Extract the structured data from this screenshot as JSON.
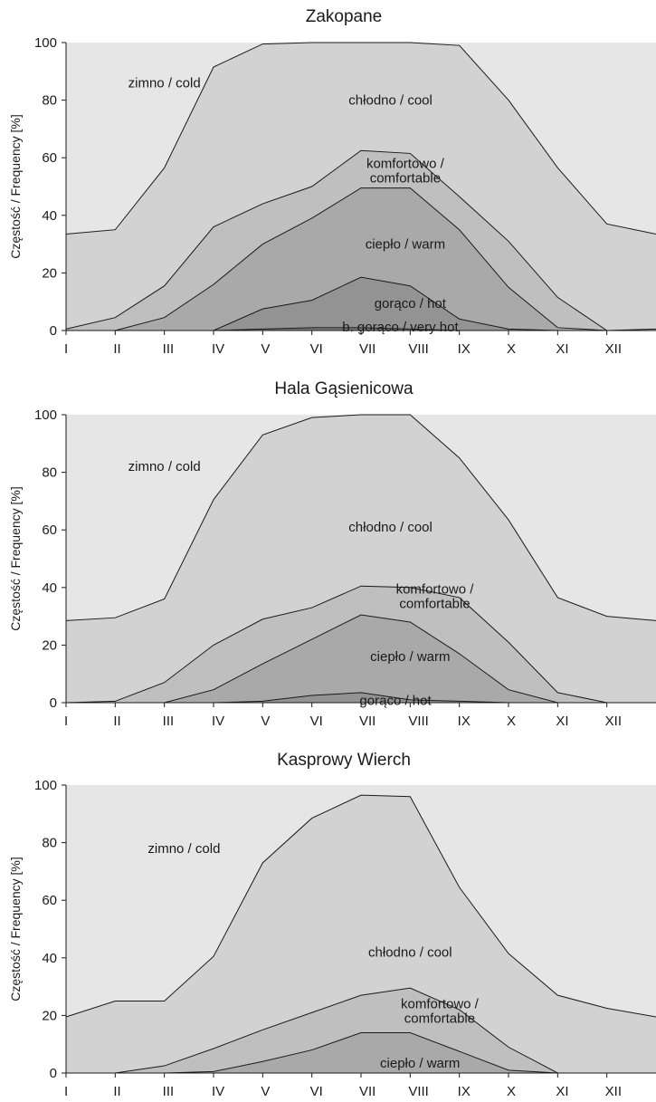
{
  "chart_data": [
    {
      "type": "area",
      "title": "Zakopane",
      "ylabel": "Częstość / Frequency [%]",
      "ylim": [
        0,
        100
      ],
      "yticks": [
        "0",
        "20",
        "40",
        "60",
        "80",
        "100"
      ],
      "categories": [
        "I",
        "II",
        "III",
        "IV",
        "V",
        "VI",
        "VII",
        "VIII",
        "IX",
        "X",
        "XI",
        "XII"
      ],
      "x": [
        0,
        1,
        2,
        3,
        4,
        5,
        6,
        7,
        8,
        9,
        10,
        11,
        12
      ],
      "boundaries": [
        [
          33.5,
          35,
          56.5,
          91.5,
          99.5,
          100,
          100,
          100,
          99,
          80,
          56.5,
          37,
          33.5
        ],
        [
          0.5,
          4.5,
          15.5,
          36,
          44,
          50,
          62.5,
          61.5,
          46.5,
          31,
          11.5,
          0,
          0.5
        ],
        [
          0,
          0,
          4.5,
          16,
          30,
          39,
          49.5,
          49.5,
          35,
          15,
          1,
          0,
          0
        ],
        [
          0,
          0,
          0,
          0,
          7.5,
          10.5,
          18.5,
          15.5,
          4,
          0.5,
          0,
          0,
          0
        ],
        [
          0,
          0,
          0,
          0,
          0.5,
          1,
          1,
          0.5,
          0,
          0,
          0,
          0,
          0
        ]
      ],
      "fills": [
        "#e6e6e6",
        "#d2d2d2",
        "#bfbfbf",
        "#a9a9a9",
        "#939393",
        "#7a7a7a"
      ],
      "regions": [
        {
          "label": "zimno / cold"
        },
        {
          "label": "chłodno / cool"
        },
        {
          "label": "komfortowo / comfortable"
        },
        {
          "label": "ciepło / warm"
        },
        {
          "label": "gorąco / hot"
        },
        {
          "label": "b. gorąco / very hot"
        }
      ]
    },
    {
      "type": "area",
      "title": "Hala Gąsienicowa",
      "ylabel": "Częstość / Frequency [%]",
      "ylim": [
        0,
        100
      ],
      "yticks": [
        "0",
        "20",
        "40",
        "60",
        "80",
        "100"
      ],
      "categories": [
        "I",
        "II",
        "III",
        "IV",
        "V",
        "VI",
        "VII",
        "VIII",
        "IX",
        "X",
        "XI",
        "XII"
      ],
      "x": [
        0,
        1,
        2,
        3,
        4,
        5,
        6,
        7,
        8,
        9,
        10,
        11,
        12
      ],
      "boundaries": [
        [
          28.5,
          29.5,
          36,
          70.5,
          93,
          99,
          100,
          100,
          85,
          63.5,
          36.5,
          30,
          28.5
        ],
        [
          0,
          0.5,
          7,
          20,
          29,
          33,
          40.5,
          40,
          36.5,
          21,
          3.5,
          0,
          0
        ],
        [
          0,
          0,
          0,
          4.5,
          13.5,
          22,
          30.5,
          28,
          17,
          4.5,
          0,
          0,
          0
        ],
        [
          0,
          0,
          0,
          0,
          0.5,
          2.5,
          3.5,
          1,
          0.5,
          0,
          0,
          0,
          0
        ]
      ],
      "fills": [
        "#e6e6e6",
        "#d2d2d2",
        "#bfbfbf",
        "#a9a9a9",
        "#939393"
      ],
      "regions": [
        {
          "label": "zimno / cold"
        },
        {
          "label": "chłodno / cool"
        },
        {
          "label": "komfortowo / comfortable"
        },
        {
          "label": "ciepło / warm"
        },
        {
          "label": "gorąco / hot"
        }
      ]
    },
    {
      "type": "area",
      "title": "Kasprowy Wierch",
      "ylabel": "Częstość / Frequency [%]",
      "ylim": [
        0,
        100
      ],
      "yticks": [
        "0",
        "20",
        "40",
        "60",
        "80",
        "100"
      ],
      "categories": [
        "I",
        "II",
        "III",
        "IV",
        "V",
        "VI",
        "VII",
        "VIII",
        "IX",
        "X",
        "XI",
        "XII"
      ],
      "x": [
        0,
        1,
        2,
        3,
        4,
        5,
        6,
        7,
        8,
        9,
        10,
        11,
        12
      ],
      "boundaries": [
        [
          19.5,
          25,
          25,
          40.5,
          73,
          88.5,
          96.5,
          96,
          64.5,
          41.5,
          27,
          22.5,
          19.5
        ],
        [
          0,
          0,
          2.5,
          8.5,
          15,
          21,
          27,
          29.5,
          22,
          9,
          0,
          0,
          0
        ],
        [
          0,
          0,
          0,
          0.5,
          4,
          8,
          14,
          14,
          7.5,
          1,
          0,
          0,
          0
        ]
      ],
      "fills": [
        "#e6e6e6",
        "#d2d2d2",
        "#bfbfbf",
        "#a9a9a9"
      ],
      "regions": [
        {
          "label": "zimno / cold"
        },
        {
          "label": "chłodno / cool"
        },
        {
          "label": "komfortowo / comfortable"
        },
        {
          "label": "ciepło / warm"
        }
      ]
    }
  ]
}
